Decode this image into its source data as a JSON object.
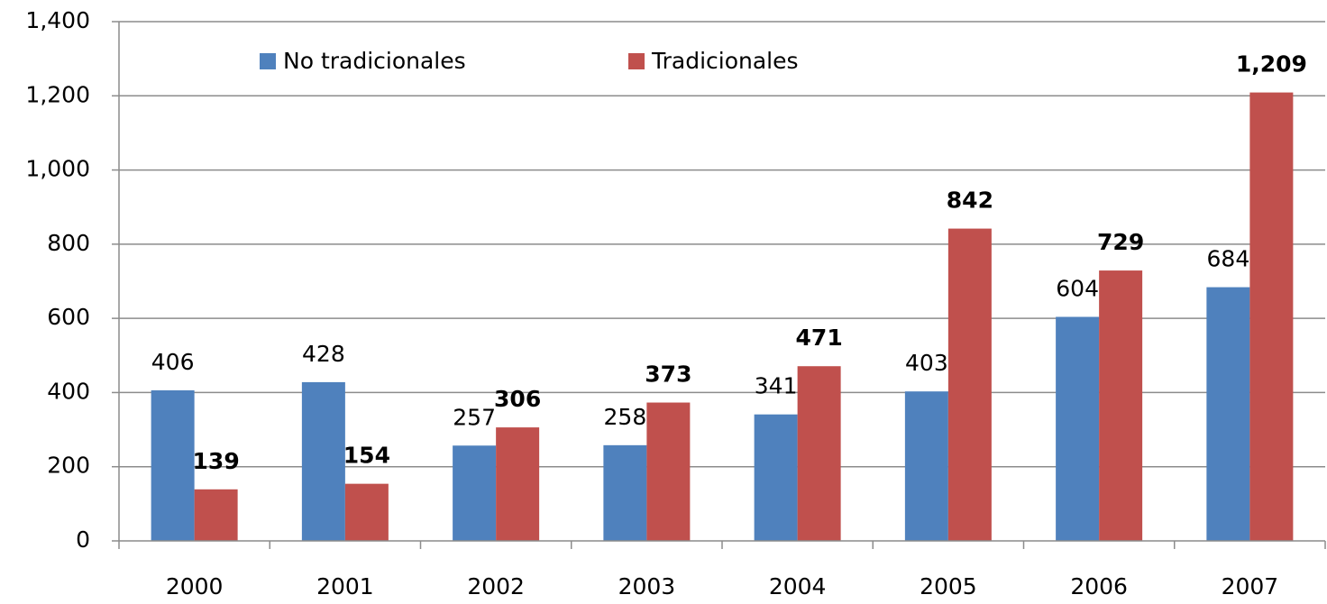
{
  "chart_data": {
    "type": "bar",
    "categories": [
      "2000",
      "2001",
      "2002",
      "2003",
      "2004",
      "2005",
      "2006",
      "2007"
    ],
    "series": [
      {
        "name": "No tradicionales",
        "color": "#4f81bd",
        "values": [
          406,
          428,
          257,
          258,
          341,
          403,
          604,
          684
        ]
      },
      {
        "name": "Tradicionales",
        "color": "#c0504d",
        "values": [
          139,
          154,
          306,
          373,
          471,
          842,
          729,
          1209
        ],
        "value_labels": [
          "139",
          "154",
          "306",
          "373",
          "471",
          "842",
          "729",
          "1,209"
        ]
      }
    ],
    "ylim": [
      0,
      1400
    ],
    "yticks": [
      0,
      200,
      400,
      600,
      800,
      {
        "value": 1000,
        "label": "1,000"
      },
      {
        "value": 1200,
        "label": "1,200"
      },
      {
        "value": 1400,
        "label": "1,400"
      }
    ],
    "grid": true,
    "legend": "top"
  }
}
